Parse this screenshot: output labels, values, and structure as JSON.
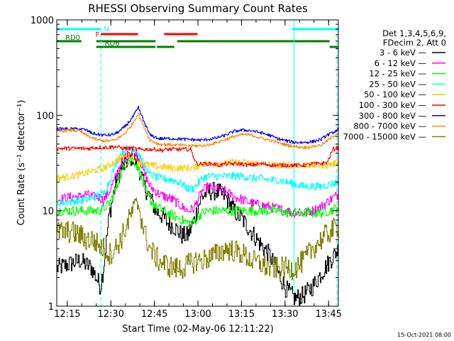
{
  "chart_data": {
    "type": "line",
    "title": "RHESSI Observing Summary Count Rates",
    "xlabel": "Start Time (02-May-06 12:11:22)",
    "ylabel": "Count Rate (s⁻¹ detector⁻¹)",
    "xlim_minutes": [
      0,
      97
    ],
    "ylim": [
      1,
      1000
    ],
    "yscale": "log",
    "x_ticks": [
      {
        "label": "12:15",
        "minute": 3.63
      },
      {
        "label": "12:30",
        "minute": 18.63
      },
      {
        "label": "12:45",
        "minute": 33.63
      },
      {
        "label": "13:00",
        "minute": 48.63
      },
      {
        "label": "13:15",
        "minute": 63.63
      },
      {
        "label": "13:30",
        "minute": 78.63
      },
      {
        "label": "13:45",
        "minute": 93.63
      }
    ],
    "y_ticks": [
      {
        "label": "1",
        "value": 1
      },
      {
        "label": "10",
        "value": 10
      },
      {
        "label": "100",
        "value": 100
      },
      {
        "label": "1000",
        "value": 1000
      }
    ],
    "legend": {
      "position": "right",
      "header": [
        "Det 1,3,4,5,6,9,",
        "FDecim 2, Att 0"
      ]
    },
    "series": [
      {
        "name": "3 - 6 keV",
        "color": "#000000",
        "x": [
          0,
          8,
          12,
          15,
          16,
          18,
          20,
          22,
          24,
          26,
          28,
          30,
          32,
          34,
          36,
          38,
          40,
          43,
          45,
          47,
          49,
          50,
          52,
          55,
          58,
          61,
          64,
          67,
          70,
          73,
          76,
          79,
          82,
          85,
          88,
          91,
          94,
          97
        ],
        "y": [
          2.5,
          3,
          2.5,
          1.6,
          2.5,
          9,
          18,
          27,
          33,
          37,
          30,
          18,
          14,
          10,
          9,
          7.5,
          7,
          5.5,
          5.5,
          7.5,
          12,
          14,
          16,
          16,
          14,
          10,
          8,
          6,
          4.5,
          3.5,
          2.3,
          1.5,
          1.2,
          1.3,
          1.6,
          2.2,
          3,
          4
        ]
      },
      {
        "name": "6 - 12 keV",
        "color": "#ff00ff",
        "x": [
          0,
          5,
          8,
          10,
          12,
          14,
          16,
          18,
          20,
          22,
          24,
          26,
          28,
          30,
          32,
          35,
          40,
          43,
          45,
          47,
          49,
          50,
          52,
          55,
          58,
          61,
          64,
          67,
          70,
          73,
          76,
          79,
          82,
          85,
          88,
          91,
          94,
          97
        ],
        "y": [
          13,
          14,
          14,
          15,
          14,
          14,
          13,
          16,
          22,
          32,
          38,
          42,
          38,
          25,
          18,
          15,
          13,
          11,
          10,
          10.5,
          14,
          16,
          18,
          17,
          16,
          14,
          13,
          12,
          11.5,
          11,
          10.5,
          10,
          9.5,
          9.5,
          10,
          11,
          13,
          15
        ]
      },
      {
        "name": "12 - 25 keV",
        "color": "#00ff00",
        "x": [
          0,
          5,
          10,
          14,
          16,
          18,
          20,
          22,
          24,
          26,
          28,
          30,
          32,
          34,
          38,
          43,
          45,
          47,
          49,
          50,
          52,
          55,
          58,
          61,
          64,
          67,
          70,
          73,
          76,
          79,
          82,
          85,
          88,
          91,
          94,
          97
        ],
        "y": [
          10,
          10,
          10,
          10,
          10.5,
          12,
          16,
          24,
          33,
          35,
          28,
          18,
          13,
          11,
          9.5,
          8,
          7.5,
          7.5,
          9,
          9.5,
          10,
          10,
          10,
          10,
          10,
          10,
          10,
          10,
          10,
          9.5,
          9.5,
          9.5,
          9.5,
          9.5,
          10,
          11
        ]
      },
      {
        "name": "25 - 50 keV",
        "color": "#00ffff",
        "x": [
          0,
          5,
          10,
          13,
          16,
          18,
          20,
          22,
          24,
          26,
          28,
          30,
          32,
          35,
          40,
          43,
          45,
          47,
          49,
          50,
          52,
          55,
          58,
          61,
          64,
          67,
          70,
          73,
          76,
          79,
          82,
          85,
          88,
          91,
          94,
          97
        ],
        "y": [
          12,
          12.5,
          13,
          14,
          15,
          20,
          30,
          40,
          45,
          45,
          40,
          30,
          24,
          22,
          21,
          19,
          17,
          17,
          20,
          22,
          23,
          23,
          23,
          23,
          23,
          22,
          22,
          21,
          21,
          20,
          19,
          18,
          18,
          18,
          19,
          20
        ]
      },
      {
        "name": "50 - 100 keV",
        "color": "#ffcc00",
        "x": [
          0,
          5,
          8,
          10,
          12,
          14,
          16,
          18,
          20,
          22,
          24,
          26,
          28,
          30,
          32,
          35,
          40,
          43,
          45,
          47,
          49,
          50,
          52,
          55,
          60,
          65,
          70,
          75,
          80,
          85,
          90,
          93,
          95,
          97
        ],
        "y": [
          22,
          23,
          24,
          25,
          26,
          27,
          28,
          30,
          33,
          36,
          38,
          36,
          33,
          31,
          30,
          29,
          28,
          28,
          28,
          28,
          30,
          31,
          31,
          31,
          32,
          32,
          31,
          30,
          30,
          30,
          30,
          30,
          31,
          32
        ]
      },
      {
        "name": "100 - 300 keV",
        "color": "#ff0000",
        "x": [
          0,
          5,
          8,
          11,
          13,
          15,
          17,
          20,
          23,
          26,
          28,
          30,
          32,
          34,
          36,
          38,
          40,
          42,
          44,
          46,
          48,
          50,
          52,
          54,
          56,
          58,
          60,
          63,
          66,
          70,
          75,
          80,
          85,
          88,
          90,
          93,
          95,
          97
        ],
        "y": [
          45,
          45,
          45,
          45,
          46,
          46,
          46,
          47,
          45,
          45,
          44,
          44,
          44,
          44,
          43,
          44,
          44,
          44,
          44,
          44,
          31,
          31,
          31,
          31,
          30,
          31,
          31,
          31,
          30,
          31,
          30,
          30,
          30,
          31,
          31,
          32,
          44,
          46
        ]
      },
      {
        "name": "300 - 800 keV",
        "color": "#0000ff",
        "x": [
          0,
          5,
          8,
          10,
          12,
          14,
          16,
          18,
          20,
          22,
          24,
          26,
          28,
          30,
          32,
          35,
          40,
          45,
          49,
          50,
          52,
          55,
          58,
          61,
          64,
          67,
          70,
          73,
          76,
          79,
          82,
          85,
          88,
          91,
          93,
          95,
          97
        ],
        "y": [
          72,
          72,
          72,
          70,
          65,
          63,
          62,
          62,
          64,
          70,
          80,
          95,
          120,
          85,
          62,
          57,
          57,
          56,
          55,
          55,
          56,
          58,
          62,
          68,
          70,
          69,
          66,
          62,
          57,
          54,
          52,
          52,
          53,
          56,
          62,
          66,
          72
        ]
      },
      {
        "name": "800 - 7000 keV",
        "color": "#ff8800",
        "x": [
          0,
          5,
          8,
          10,
          12,
          14,
          16,
          18,
          20,
          22,
          24,
          26,
          28,
          30,
          32,
          35,
          40,
          45,
          49,
          50,
          52,
          55,
          58,
          61,
          64,
          67,
          70,
          73,
          76,
          79,
          82,
          85,
          88,
          91,
          93,
          95,
          97
        ],
        "y": [
          68,
          70,
          68,
          62,
          58,
          55,
          54,
          54,
          55,
          60,
          68,
          82,
          105,
          75,
          55,
          50,
          49,
          48,
          48,
          48,
          49,
          52,
          56,
          60,
          63,
          62,
          58,
          55,
          52,
          49,
          47,
          46,
          47,
          49,
          54,
          60,
          66
        ]
      },
      {
        "name": "7000 - 15000 keV",
        "color": "#808000",
        "x": [
          0,
          5,
          8,
          10,
          12,
          14,
          16,
          18,
          20,
          22,
          24,
          26,
          28,
          30,
          32,
          35,
          40,
          43,
          45,
          48,
          50,
          52,
          55,
          58,
          61,
          64,
          67,
          70,
          73,
          76,
          79,
          82,
          85,
          88,
          91,
          94,
          97
        ],
        "y": [
          6,
          6,
          5.5,
          5,
          5,
          4.5,
          4,
          3.5,
          4,
          5,
          7,
          10,
          12,
          6,
          4,
          3,
          2.5,
          2.5,
          2.7,
          3,
          3,
          3.2,
          3.5,
          4,
          3.8,
          3.5,
          3,
          2.8,
          2.5,
          2.5,
          2.5,
          2.5,
          3,
          4,
          5,
          6,
          7
        ]
      }
    ],
    "flag_bars": [
      {
        "label": "N",
        "color": "#00ffff",
        "start": 0,
        "end": 15,
        "level": "top"
      },
      {
        "label": "",
        "color": "#00ffff",
        "start": 81,
        "end": 97,
        "level": "top"
      },
      {
        "label": "F",
        "color": "#ff0000",
        "start": 15.2,
        "end": 28,
        "level": "second"
      },
      {
        "label": "",
        "color": "#ff0000",
        "start": 37,
        "end": 48.5,
        "level": "second"
      },
      {
        "label": "RD0",
        "color": "#008000",
        "start": 0,
        "end": 8.5,
        "level": "third"
      },
      {
        "label": "RD6",
        "color": "#008000",
        "start": 13.6,
        "end": 34,
        "level": "fourth"
      },
      {
        "label": "",
        "color": "#008000",
        "start": 13.6,
        "end": 34,
        "level": "third"
      },
      {
        "label": "",
        "color": "#008000",
        "start": 34.5,
        "end": 40.5,
        "level": "fourth"
      },
      {
        "label": "",
        "color": "#008000",
        "start": 41.5,
        "end": 94,
        "level": "third"
      },
      {
        "label": "",
        "color": "#008000",
        "start": 94,
        "end": 97,
        "level": "fourth"
      }
    ],
    "cyan_solid_lines": [
      0,
      81.7
    ],
    "cyan_dashed_lines": [
      15.2,
      96.5
    ],
    "grid": false
  },
  "footer_stamp": "15-Oct-2021 08:00"
}
